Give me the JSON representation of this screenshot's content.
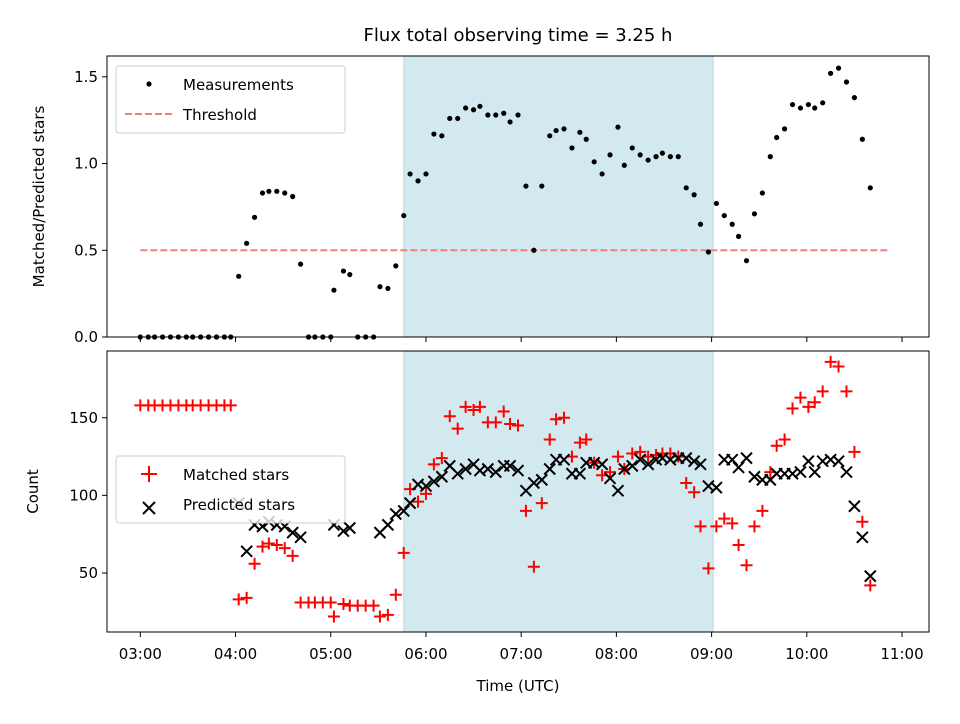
{
  "title": "Flux total observing time = 3.25 h",
  "chart_data": [
    {
      "type": "scatter",
      "ylabel": "Matched/Predicted stars",
      "xlim": [
        "02:39",
        "11:17"
      ],
      "ylim": [
        0,
        1.62
      ],
      "x_ticks": [
        "03:00",
        "04:00",
        "05:00",
        "06:00",
        "07:00",
        "08:00",
        "09:00",
        "10:00",
        "11:00"
      ],
      "y_ticks": [
        "0.0",
        "0.5",
        "1.0",
        "1.5"
      ],
      "y_tick_values": [
        0,
        0.5,
        1.0,
        1.5
      ],
      "shaded_span": [
        "05:46",
        "09:01"
      ],
      "shade_color": "#d2e9f0",
      "legend": {
        "position": "upper-left",
        "measurements_label": "Measurements",
        "threshold_label": "Threshold"
      },
      "threshold": {
        "value": 0.5,
        "x_range": [
          "03:00",
          "10:52"
        ],
        "color": "#f08080"
      },
      "measurements": [
        [
          "03:00",
          0
        ],
        [
          "03:05",
          0
        ],
        [
          "03:09",
          0
        ],
        [
          "03:14",
          0
        ],
        [
          "03:19",
          0
        ],
        [
          "03:24",
          0
        ],
        [
          "03:29",
          0
        ],
        [
          "03:33",
          0
        ],
        [
          "03:38",
          0
        ],
        [
          "03:43",
          0
        ],
        [
          "03:48",
          0
        ],
        [
          "03:53",
          0
        ],
        [
          "03:57",
          0
        ],
        [
          "04:02",
          0.35
        ],
        [
          "04:07",
          0.54
        ],
        [
          "04:12",
          0.69
        ],
        [
          "04:17",
          0.83
        ],
        [
          "04:21",
          0.84
        ],
        [
          "04:26",
          0.84
        ],
        [
          "04:31",
          0.83
        ],
        [
          "04:36",
          0.81
        ],
        [
          "04:41",
          0.42
        ],
        [
          "04:46",
          0
        ],
        [
          "04:50",
          0
        ],
        [
          "04:55",
          0
        ],
        [
          "05:00",
          0
        ],
        [
          "05:02",
          0.27
        ],
        [
          "05:08",
          0.38
        ],
        [
          "05:12",
          0.36
        ],
        [
          "05:17",
          0
        ],
        [
          "05:22",
          0
        ],
        [
          "05:27",
          0
        ],
        [
          "05:31",
          0.29
        ],
        [
          "05:36",
          0.28
        ],
        [
          "05:41",
          0.41
        ],
        [
          "05:46",
          0.7
        ],
        [
          "05:50",
          0.94
        ],
        [
          "05:55",
          0.9
        ],
        [
          "06:00",
          0.94
        ],
        [
          "06:05",
          1.17
        ],
        [
          "06:10",
          1.16
        ],
        [
          "06:15",
          1.26
        ],
        [
          "06:20",
          1.26
        ],
        [
          "06:25",
          1.32
        ],
        [
          "06:30",
          1.31
        ],
        [
          "06:34",
          1.33
        ],
        [
          "06:39",
          1.28
        ],
        [
          "06:44",
          1.28
        ],
        [
          "06:49",
          1.29
        ],
        [
          "06:53",
          1.24
        ],
        [
          "06:58",
          1.28
        ],
        [
          "07:03",
          0.87
        ],
        [
          "07:08",
          0.5
        ],
        [
          "07:13",
          0.87
        ],
        [
          "07:18",
          1.16
        ],
        [
          "07:22",
          1.19
        ],
        [
          "07:27",
          1.2
        ],
        [
          "07:32",
          1.09
        ],
        [
          "07:37",
          1.18
        ],
        [
          "07:41",
          1.14
        ],
        [
          "07:46",
          1.01
        ],
        [
          "07:51",
          0.94
        ],
        [
          "07:56",
          1.05
        ],
        [
          "08:01",
          1.21
        ],
        [
          "08:05",
          0.99
        ],
        [
          "08:10",
          1.09
        ],
        [
          "08:15",
          1.05
        ],
        [
          "08:20",
          1.02
        ],
        [
          "08:25",
          1.04
        ],
        [
          "08:29",
          1.06
        ],
        [
          "08:34",
          1.04
        ],
        [
          "08:39",
          1.04
        ],
        [
          "08:44",
          0.86
        ],
        [
          "08:49",
          0.82
        ],
        [
          "08:53",
          0.65
        ],
        [
          "08:58",
          0.49
        ],
        [
          "09:03",
          0.77
        ],
        [
          "09:08",
          0.7
        ],
        [
          "09:13",
          0.65
        ],
        [
          "09:17",
          0.58
        ],
        [
          "09:22",
          0.44
        ],
        [
          "09:27",
          0.71
        ],
        [
          "09:32",
          0.83
        ],
        [
          "09:37",
          1.04
        ],
        [
          "09:41",
          1.15
        ],
        [
          "09:46",
          1.2
        ],
        [
          "09:51",
          1.34
        ],
        [
          "09:56",
          1.32
        ],
        [
          "10:01",
          1.34
        ],
        [
          "10:05",
          1.32
        ],
        [
          "10:10",
          1.35
        ],
        [
          "10:15",
          1.52
        ],
        [
          "10:20",
          1.55
        ],
        [
          "10:25",
          1.47
        ],
        [
          "10:30",
          1.38
        ],
        [
          "10:35",
          1.14
        ],
        [
          "10:40",
          0.86
        ]
      ]
    },
    {
      "type": "scatter",
      "xlabel": "Time (UTC)",
      "ylabel": "Count",
      "xlim": [
        "02:39",
        "11:17"
      ],
      "ylim": [
        12,
        193
      ],
      "x_ticks": [
        "03:00",
        "04:00",
        "05:00",
        "06:00",
        "07:00",
        "08:00",
        "09:00",
        "10:00",
        "11:00"
      ],
      "y_ticks": [
        "50",
        "100",
        "150"
      ],
      "y_tick_values": [
        50,
        100,
        150
      ],
      "shaded_span": [
        "05:46",
        "09:01"
      ],
      "legend": {
        "position": "center-left",
        "matched_label": "Matched stars",
        "predicted_label": "Predicted stars"
      },
      "matched_color": "#ff0000",
      "predicted_color": "#000000",
      "matched": [
        [
          "03:00",
          158
        ],
        [
          "03:05",
          158
        ],
        [
          "03:09",
          158
        ],
        [
          "03:14",
          158
        ],
        [
          "03:19",
          158
        ],
        [
          "03:24",
          158
        ],
        [
          "03:29",
          158
        ],
        [
          "03:33",
          158
        ],
        [
          "03:38",
          158
        ],
        [
          "03:43",
          158
        ],
        [
          "03:48",
          158
        ],
        [
          "03:53",
          158
        ],
        [
          "03:57",
          158
        ],
        [
          "04:02",
          33
        ],
        [
          "04:07",
          34
        ],
        [
          "04:12",
          56
        ],
        [
          "04:17",
          67
        ],
        [
          "04:21",
          69
        ],
        [
          "04:26",
          68
        ],
        [
          "04:31",
          66
        ],
        [
          "04:36",
          61
        ],
        [
          "04:41",
          31
        ],
        [
          "04:46",
          31
        ],
        [
          "04:50",
          31
        ],
        [
          "04:55",
          31
        ],
        [
          "05:00",
          31
        ],
        [
          "05:02",
          22
        ],
        [
          "05:08",
          30
        ],
        [
          "05:12",
          29
        ],
        [
          "05:17",
          29
        ],
        [
          "05:22",
          29
        ],
        [
          "05:27",
          29
        ],
        [
          "05:31",
          22
        ],
        [
          "05:36",
          23
        ],
        [
          "05:41",
          36
        ],
        [
          "05:46",
          63
        ],
        [
          "05:50",
          104
        ],
        [
          "05:55",
          96
        ],
        [
          "06:00",
          101
        ],
        [
          "06:05",
          120
        ],
        [
          "06:10",
          124
        ],
        [
          "06:15",
          151
        ],
        [
          "06:20",
          143
        ],
        [
          "06:25",
          157
        ],
        [
          "06:30",
          155
        ],
        [
          "06:34",
          157
        ],
        [
          "06:39",
          147
        ],
        [
          "06:44",
          147
        ],
        [
          "06:49",
          154
        ],
        [
          "06:53",
          146
        ],
        [
          "06:58",
          145
        ],
        [
          "07:03",
          90
        ],
        [
          "07:08",
          54
        ],
        [
          "07:13",
          95
        ],
        [
          "07:18",
          136
        ],
        [
          "07:22",
          149
        ],
        [
          "07:27",
          150
        ],
        [
          "07:32",
          125
        ],
        [
          "07:37",
          134
        ],
        [
          "07:41",
          136
        ],
        [
          "07:46",
          121
        ],
        [
          "07:51",
          113
        ],
        [
          "07:56",
          115
        ],
        [
          "08:01",
          125
        ],
        [
          "08:05",
          117
        ],
        [
          "08:10",
          127
        ],
        [
          "08:15",
          128
        ],
        [
          "08:20",
          125
        ],
        [
          "08:25",
          126
        ],
        [
          "08:29",
          127
        ],
        [
          "08:34",
          127
        ],
        [
          "08:39",
          125
        ],
        [
          "08:44",
          108
        ],
        [
          "08:49",
          102
        ],
        [
          "08:53",
          80
        ],
        [
          "08:58",
          53
        ],
        [
          "09:03",
          80
        ],
        [
          "09:08",
          85
        ],
        [
          "09:13",
          82
        ],
        [
          "09:17",
          68
        ],
        [
          "09:22",
          55
        ],
        [
          "09:27",
          80
        ],
        [
          "09:32",
          90
        ],
        [
          "09:37",
          115
        ],
        [
          "09:41",
          132
        ],
        [
          "09:46",
          136
        ],
        [
          "09:51",
          156
        ],
        [
          "09:56",
          163
        ],
        [
          "10:01",
          157
        ],
        [
          "10:05",
          160
        ],
        [
          "10:10",
          167
        ],
        [
          "10:15",
          186
        ],
        [
          "10:20",
          183
        ],
        [
          "10:25",
          167
        ],
        [
          "10:30",
          128
        ],
        [
          "10:35",
          83
        ],
        [
          "10:40",
          42
        ]
      ],
      "predicted": [
        [
          "04:02",
          95
        ],
        [
          "04:07",
          64
        ],
        [
          "04:12",
          81
        ],
        [
          "04:17",
          80
        ],
        [
          "04:21",
          83
        ],
        [
          "04:26",
          81
        ],
        [
          "04:31",
          80
        ],
        [
          "04:36",
          76
        ],
        [
          "04:41",
          73
        ],
        [
          "05:02",
          81
        ],
        [
          "05:08",
          77
        ],
        [
          "05:12",
          79
        ],
        [
          "05:31",
          76
        ],
        [
          "05:36",
          81
        ],
        [
          "05:41",
          88
        ],
        [
          "05:46",
          90
        ],
        [
          "05:50",
          95
        ],
        [
          "05:55",
          107
        ],
        [
          "06:00",
          106
        ],
        [
          "06:05",
          109
        ],
        [
          "06:10",
          112
        ],
        [
          "06:15",
          119
        ],
        [
          "06:20",
          114
        ],
        [
          "06:25",
          117
        ],
        [
          "06:30",
          120
        ],
        [
          "06:34",
          116
        ],
        [
          "06:39",
          117
        ],
        [
          "06:44",
          115
        ],
        [
          "06:49",
          119
        ],
        [
          "06:53",
          119
        ],
        [
          "06:58",
          116
        ],
        [
          "07:03",
          103
        ],
        [
          "07:08",
          108
        ],
        [
          "07:13",
          110
        ],
        [
          "07:18",
          117
        ],
        [
          "07:22",
          123
        ],
        [
          "07:27",
          123
        ],
        [
          "07:32",
          114
        ],
        [
          "07:37",
          114
        ],
        [
          "07:41",
          121
        ],
        [
          "07:46",
          121
        ],
        [
          "07:51",
          120
        ],
        [
          "07:56",
          111
        ],
        [
          "08:01",
          103
        ],
        [
          "08:05",
          117
        ],
        [
          "08:10",
          119
        ],
        [
          "08:15",
          123
        ],
        [
          "08:20",
          120
        ],
        [
          "08:25",
          123
        ],
        [
          "08:29",
          124
        ],
        [
          "08:34",
          123
        ],
        [
          "08:39",
          124
        ],
        [
          "08:44",
          124
        ],
        [
          "08:49",
          122
        ],
        [
          "08:53",
          120
        ],
        [
          "08:58",
          106
        ],
        [
          "09:03",
          105
        ],
        [
          "09:08",
          123
        ],
        [
          "09:13",
          123
        ],
        [
          "09:17",
          118
        ],
        [
          "09:22",
          124
        ],
        [
          "09:27",
          112
        ],
        [
          "09:32",
          110
        ],
        [
          "09:37",
          110
        ],
        [
          "09:41",
          114
        ],
        [
          "09:46",
          114
        ],
        [
          "09:51",
          114
        ],
        [
          "09:56",
          115
        ],
        [
          "10:01",
          122
        ],
        [
          "10:05",
          115
        ],
        [
          "10:10",
          122
        ],
        [
          "10:15",
          123
        ],
        [
          "10:20",
          122
        ],
        [
          "10:25",
          115
        ],
        [
          "10:30",
          93
        ],
        [
          "10:35",
          73
        ],
        [
          "10:40",
          48
        ]
      ]
    }
  ]
}
